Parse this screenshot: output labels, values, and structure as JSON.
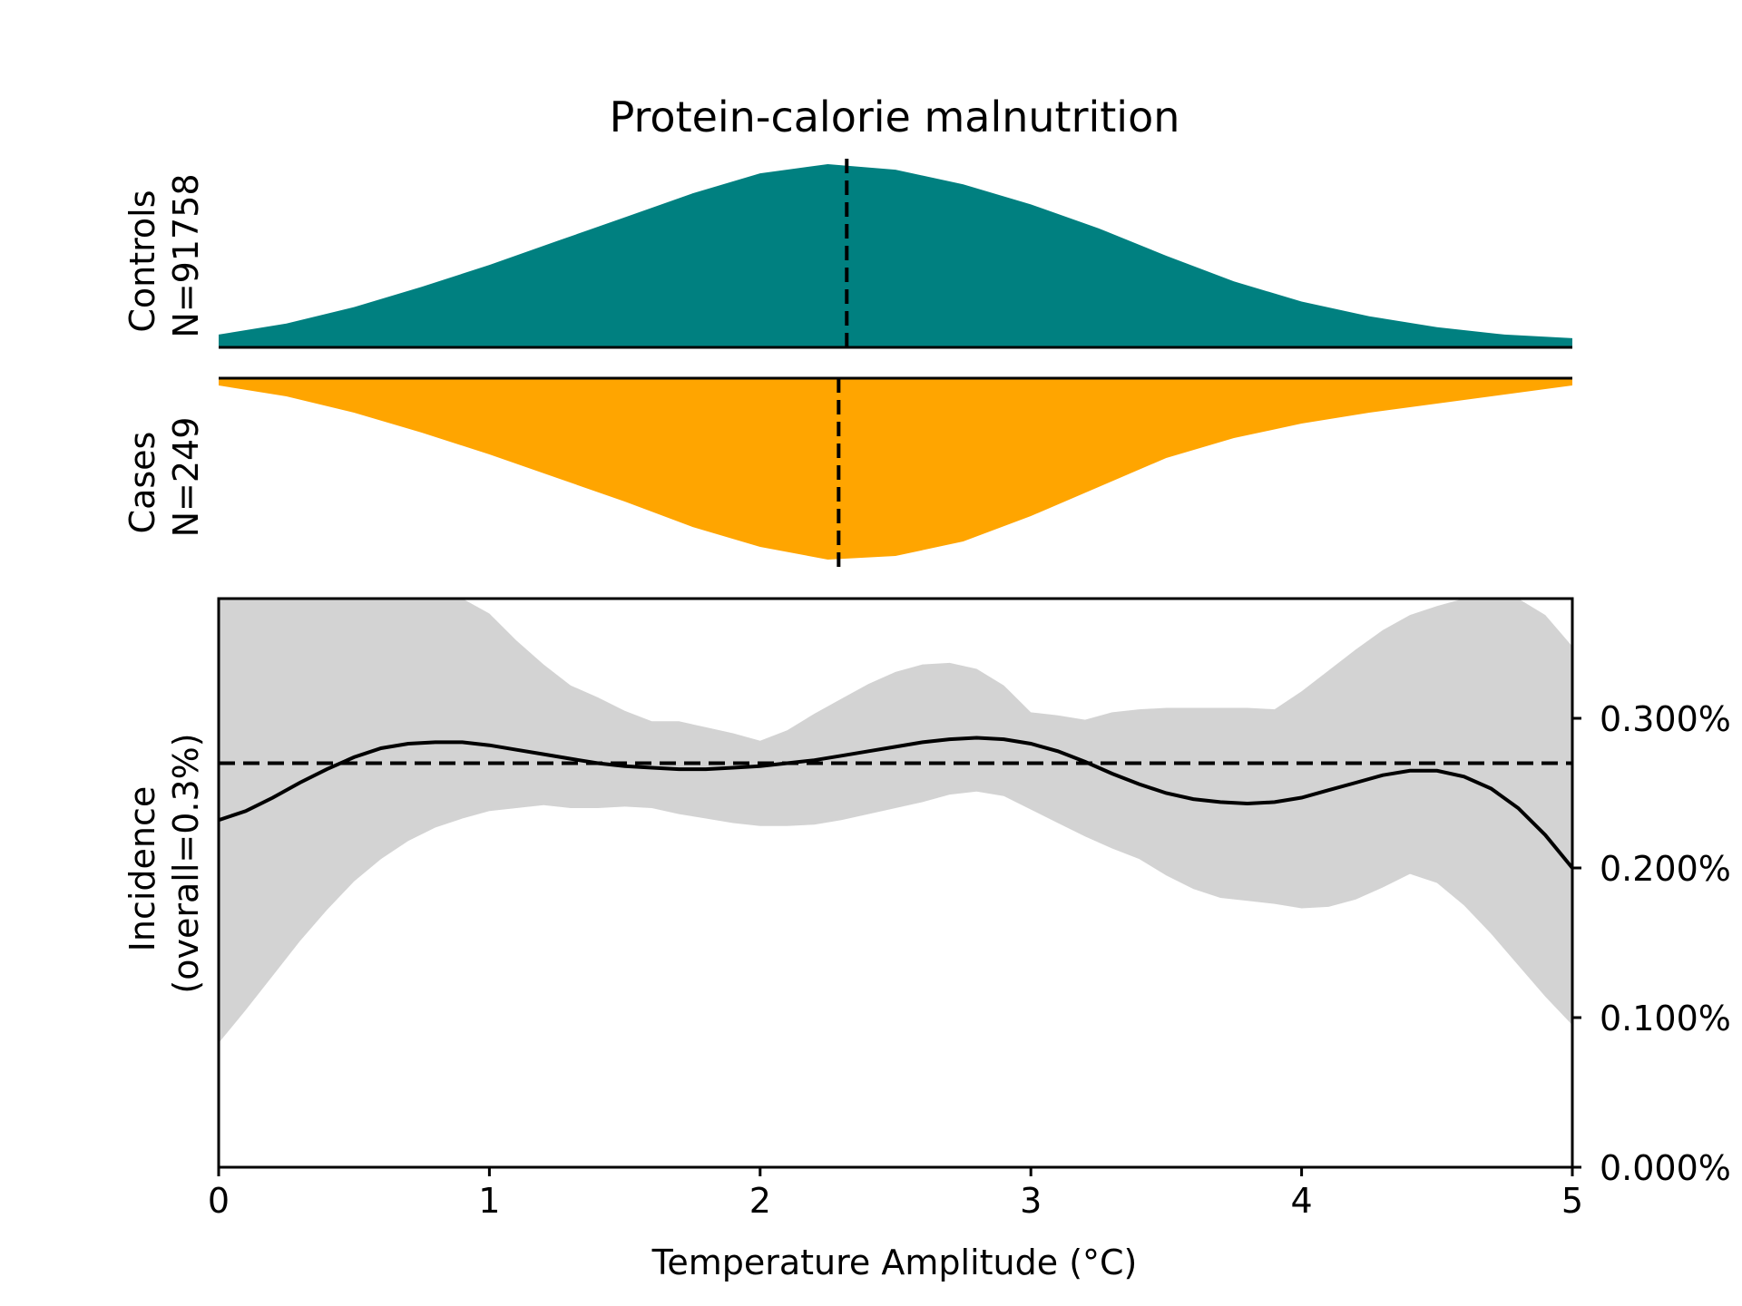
{
  "chart_data": {
    "title": "Protein-calorie malnutrition",
    "xlabel": "Temperature Amplitude (°C)",
    "xlim": [
      0,
      5
    ],
    "x_ticks": [
      0,
      1,
      2,
      3,
      4,
      5
    ],
    "x_tick_labels": [
      "0",
      "1",
      "2",
      "3",
      "4",
      "5"
    ],
    "panels": [
      {
        "type": "area",
        "role": "controls-density",
        "label_line1": "Controls",
        "label_line2": "N=91758",
        "color": "#008080",
        "direction": "up",
        "median_x": 2.32,
        "x": [
          0,
          0.25,
          0.5,
          0.75,
          1,
          1.25,
          1.5,
          1.75,
          2,
          2.25,
          2.5,
          2.75,
          3,
          3.25,
          3.5,
          3.75,
          4,
          4.25,
          4.5,
          4.75,
          5
        ],
        "density": [
          0.07,
          0.13,
          0.22,
          0.33,
          0.45,
          0.58,
          0.71,
          0.84,
          0.95,
          1.0,
          0.97,
          0.89,
          0.78,
          0.65,
          0.5,
          0.36,
          0.25,
          0.17,
          0.11,
          0.07,
          0.05
        ]
      },
      {
        "type": "area",
        "role": "cases-density",
        "label_line1": "Cases",
        "label_line2": "N=249",
        "color": "#ffa500",
        "direction": "down",
        "median_x": 2.29,
        "x": [
          0,
          0.25,
          0.5,
          0.75,
          1,
          1.25,
          1.5,
          1.75,
          2,
          2.25,
          2.5,
          2.75,
          3,
          3.25,
          3.5,
          3.75,
          4,
          4.25,
          4.5,
          4.75,
          5
        ],
        "density": [
          0.04,
          0.1,
          0.19,
          0.3,
          0.42,
          0.55,
          0.68,
          0.82,
          0.93,
          1.0,
          0.98,
          0.9,
          0.76,
          0.6,
          0.44,
          0.33,
          0.25,
          0.19,
          0.14,
          0.09,
          0.04
        ]
      },
      {
        "type": "line",
        "role": "incidence",
        "ylabel_line1": "Incidence",
        "ylabel_line2": "(overall=0.3%)",
        "ylim": [
          0,
          0.0038
        ],
        "y_ticks": [
          0,
          0.001,
          0.002,
          0.003
        ],
        "y_tick_labels": [
          "0.000%",
          "0.100%",
          "0.200%",
          "0.300%"
        ],
        "overall_y": 0.0027,
        "line_color": "#000000",
        "band_color": "#d3d3d3",
        "x": [
          0,
          0.1,
          0.2,
          0.3,
          0.4,
          0.5,
          0.6,
          0.7,
          0.8,
          0.9,
          1.0,
          1.1,
          1.2,
          1.3,
          1.4,
          1.5,
          1.6,
          1.7,
          1.8,
          1.9,
          2.0,
          2.1,
          2.2,
          2.3,
          2.4,
          2.5,
          2.6,
          2.7,
          2.8,
          2.9,
          3.0,
          3.1,
          3.2,
          3.3,
          3.4,
          3.5,
          3.6,
          3.7,
          3.8,
          3.9,
          4.0,
          4.1,
          4.2,
          4.3,
          4.4,
          4.5,
          4.6,
          4.7,
          4.8,
          4.9,
          5.0
        ],
        "estimate": [
          0.00232,
          0.00238,
          0.00247,
          0.00257,
          0.00266,
          0.00274,
          0.0028,
          0.00283,
          0.00284,
          0.00284,
          0.00282,
          0.00279,
          0.00276,
          0.00273,
          0.0027,
          0.00268,
          0.00267,
          0.00266,
          0.00266,
          0.00267,
          0.00268,
          0.0027,
          0.00272,
          0.00275,
          0.00278,
          0.00281,
          0.00284,
          0.00286,
          0.00287,
          0.00286,
          0.00283,
          0.00278,
          0.00271,
          0.00263,
          0.00256,
          0.0025,
          0.00246,
          0.00244,
          0.00243,
          0.00244,
          0.00247,
          0.00252,
          0.00257,
          0.00262,
          0.00265,
          0.00265,
          0.00261,
          0.00253,
          0.0024,
          0.00222,
          0.002
        ],
        "lower": [
          0.00083,
          0.00105,
          0.00128,
          0.00151,
          0.00172,
          0.00191,
          0.00206,
          0.00218,
          0.00227,
          0.00233,
          0.00238,
          0.0024,
          0.00242,
          0.0024,
          0.0024,
          0.00241,
          0.0024,
          0.00236,
          0.00233,
          0.0023,
          0.00228,
          0.00228,
          0.00229,
          0.00232,
          0.00236,
          0.0024,
          0.00244,
          0.00249,
          0.00251,
          0.00248,
          0.00239,
          0.0023,
          0.00221,
          0.00213,
          0.00206,
          0.00195,
          0.00186,
          0.0018,
          0.00178,
          0.00176,
          0.00173,
          0.00174,
          0.00179,
          0.00187,
          0.00196,
          0.0019,
          0.00175,
          0.00156,
          0.00135,
          0.00114,
          0.00095
        ],
        "upper": [
          0.0038,
          0.0038,
          0.0038,
          0.0038,
          0.0038,
          0.0038,
          0.0038,
          0.0038,
          0.0038,
          0.0038,
          0.0037,
          0.00352,
          0.00336,
          0.00322,
          0.00314,
          0.00305,
          0.00298,
          0.00298,
          0.00294,
          0.0029,
          0.00285,
          0.00292,
          0.00303,
          0.00313,
          0.00323,
          0.00331,
          0.00336,
          0.00337,
          0.00333,
          0.00322,
          0.00304,
          0.00302,
          0.00299,
          0.00304,
          0.00306,
          0.00307,
          0.00307,
          0.00307,
          0.00307,
          0.00306,
          0.00318,
          0.00332,
          0.00346,
          0.00359,
          0.00369,
          0.00375,
          0.0038,
          0.0038,
          0.0038,
          0.00369,
          0.00348
        ]
      }
    ]
  }
}
